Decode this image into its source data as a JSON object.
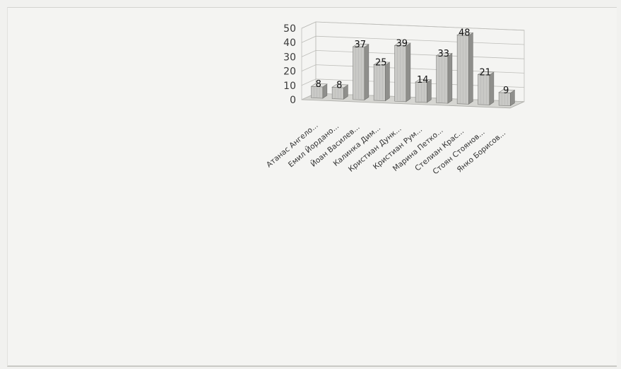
{
  "chart_data": {
    "type": "bar",
    "style": "3d-column",
    "categories": [
      "Атанас Ангело...",
      "Емил Йордано...",
      "Йоан Василев...",
      "Калинка Дим...",
      "Кристиан Дунк...",
      "Кристиан Рум...",
      "Марина Петко...",
      "Стелиан Крас...",
      "Стоян Стоянов...",
      "Янко Борисов..."
    ],
    "values": [
      8,
      8,
      37,
      25,
      39,
      14,
      33,
      48,
      21,
      9
    ],
    "value_labels": [
      "8",
      "8",
      "37",
      "25",
      "39",
      "14",
      "33",
      "48",
      "21",
      "9"
    ],
    "ylim": [
      0,
      50
    ],
    "yticks": [
      "0",
      "10",
      "20",
      "30",
      "40",
      "50"
    ],
    "grid": true,
    "legend": "none",
    "colors": {
      "bar_front": "#c9c9c6",
      "bar_side": "#8f8f8c",
      "bar_top": "#e3e3e0",
      "grid": "#bdbdb9",
      "floor": "#d6d6d2"
    }
  }
}
